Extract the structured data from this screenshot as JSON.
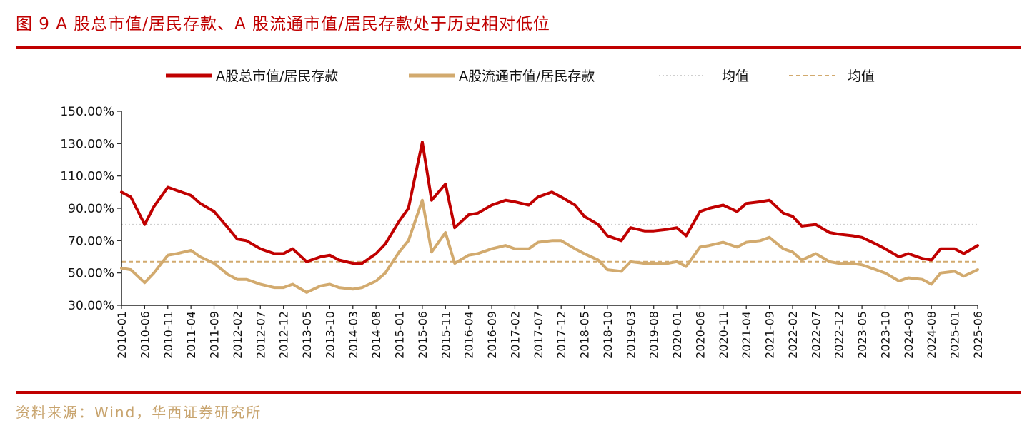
{
  "header": {
    "title": "图 9 A 股总市值/居民存款、A 股流通市值/居民存款处于历史相对低位"
  },
  "footer": {
    "source": "资料来源：Wind，华西证券研究所"
  },
  "colors": {
    "brand_red": "#c00000",
    "series_total": "#c00000",
    "series_float": "#d2aa6e",
    "avg_total": "#cfcfcf",
    "avg_float": "#d2aa6e",
    "source_text": "#c8a46e"
  },
  "chart_data": {
    "type": "line",
    "title": "",
    "xlabel": "",
    "ylabel": "",
    "ylim": [
      30,
      150
    ],
    "yticks": [
      30,
      50,
      70,
      90,
      110,
      130,
      150
    ],
    "ytick_labels": [
      "30.00%",
      "50.00%",
      "70.00%",
      "90.00%",
      "110.00%",
      "130.00%",
      "150.00%"
    ],
    "xrange": [
      "2010-01",
      "2025-06"
    ],
    "xtick_labels": [
      "2010-01",
      "2010-06",
      "2010-11",
      "2011-04",
      "2011-09",
      "2012-02",
      "2012-07",
      "2012-12",
      "2013-05",
      "2013-10",
      "2014-03",
      "2014-08",
      "2015-01",
      "2015-06",
      "2015-11",
      "2016-04",
      "2016-09",
      "2017-02",
      "2017-07",
      "2017-12",
      "2018-05",
      "2018-10",
      "2019-03",
      "2019-08",
      "2020-01",
      "2020-06",
      "2020-11",
      "2021-04",
      "2021-09",
      "2022-02",
      "2022-07",
      "2022-12",
      "2023-05",
      "2023-10",
      "2024-03",
      "2024-08",
      "2025-01",
      "2025-06"
    ],
    "legend_position": "top",
    "series": [
      {
        "name": "A股总市值/居民存款",
        "style": "solid",
        "x": [
          "2010-01",
          "2010-03",
          "2010-06",
          "2010-08",
          "2010-11",
          "2011-01",
          "2011-04",
          "2011-06",
          "2011-09",
          "2011-12",
          "2012-02",
          "2012-04",
          "2012-07",
          "2012-10",
          "2012-12",
          "2013-02",
          "2013-05",
          "2013-08",
          "2013-10",
          "2013-12",
          "2014-03",
          "2014-05",
          "2014-08",
          "2014-10",
          "2015-01",
          "2015-03",
          "2015-06",
          "2015-08",
          "2015-11",
          "2016-01",
          "2016-04",
          "2016-06",
          "2016-09",
          "2016-12",
          "2017-02",
          "2017-05",
          "2017-07",
          "2017-10",
          "2017-12",
          "2018-03",
          "2018-05",
          "2018-08",
          "2018-10",
          "2019-01",
          "2019-03",
          "2019-06",
          "2019-08",
          "2019-11",
          "2020-01",
          "2020-03",
          "2020-06",
          "2020-08",
          "2020-11",
          "2021-02",
          "2021-04",
          "2021-07",
          "2021-09",
          "2021-12",
          "2022-02",
          "2022-04",
          "2022-07",
          "2022-10",
          "2022-12",
          "2023-03",
          "2023-05",
          "2023-08",
          "2023-10",
          "2024-01",
          "2024-03",
          "2024-06",
          "2024-08",
          "2024-10",
          "2025-01",
          "2025-03",
          "2025-06"
        ],
        "values": [
          100,
          97,
          80,
          91,
          103,
          101,
          98,
          93,
          88,
          78,
          71,
          70,
          65,
          62,
          62,
          65,
          57,
          60,
          61,
          58,
          56,
          56,
          62,
          68,
          82,
          90,
          131,
          95,
          105,
          78,
          86,
          87,
          92,
          95,
          94,
          92,
          97,
          100,
          97,
          92,
          85,
          80,
          73,
          70,
          78,
          76,
          76,
          77,
          78,
          73,
          88,
          90,
          92,
          88,
          93,
          94,
          95,
          87,
          85,
          79,
          80,
          75,
          74,
          73,
          72,
          68,
          65,
          60,
          62,
          59,
          58,
          65,
          65,
          62,
          67
        ]
      },
      {
        "name": "A股流通市值/居民存款",
        "style": "solid",
        "x": [
          "2010-01",
          "2010-03",
          "2010-06",
          "2010-08",
          "2010-11",
          "2011-01",
          "2011-04",
          "2011-06",
          "2011-09",
          "2011-12",
          "2012-02",
          "2012-04",
          "2012-07",
          "2012-10",
          "2012-12",
          "2013-02",
          "2013-05",
          "2013-08",
          "2013-10",
          "2013-12",
          "2014-03",
          "2014-05",
          "2014-08",
          "2014-10",
          "2015-01",
          "2015-03",
          "2015-06",
          "2015-08",
          "2015-11",
          "2016-01",
          "2016-04",
          "2016-06",
          "2016-09",
          "2016-12",
          "2017-02",
          "2017-05",
          "2017-07",
          "2017-10",
          "2017-12",
          "2018-03",
          "2018-05",
          "2018-08",
          "2018-10",
          "2019-01",
          "2019-03",
          "2019-06",
          "2019-08",
          "2019-11",
          "2020-01",
          "2020-03",
          "2020-06",
          "2020-08",
          "2020-11",
          "2021-02",
          "2021-04",
          "2021-07",
          "2021-09",
          "2021-12",
          "2022-02",
          "2022-04",
          "2022-07",
          "2022-10",
          "2022-12",
          "2023-03",
          "2023-05",
          "2023-08",
          "2023-10",
          "2024-01",
          "2024-03",
          "2024-06",
          "2024-08",
          "2024-10",
          "2025-01",
          "2025-03",
          "2025-06"
        ],
        "values": [
          53,
          52,
          44,
          50,
          61,
          62,
          64,
          60,
          56,
          49,
          46,
          46,
          43,
          41,
          41,
          43,
          38,
          42,
          43,
          41,
          40,
          41,
          45,
          50,
          63,
          70,
          95,
          63,
          75,
          56,
          61,
          62,
          65,
          67,
          65,
          65,
          69,
          70,
          70,
          65,
          62,
          58,
          52,
          51,
          57,
          56,
          56,
          56,
          57,
          54,
          66,
          67,
          69,
          66,
          69,
          70,
          72,
          65,
          63,
          58,
          62,
          57,
          56,
          56,
          55,
          52,
          50,
          45,
          47,
          46,
          43,
          50,
          51,
          48,
          52
        ]
      },
      {
        "name": "均值",
        "style": "dotted",
        "values": [
          80
        ]
      },
      {
        "name": "均值",
        "style": "dashed",
        "values": [
          57
        ]
      }
    ]
  }
}
